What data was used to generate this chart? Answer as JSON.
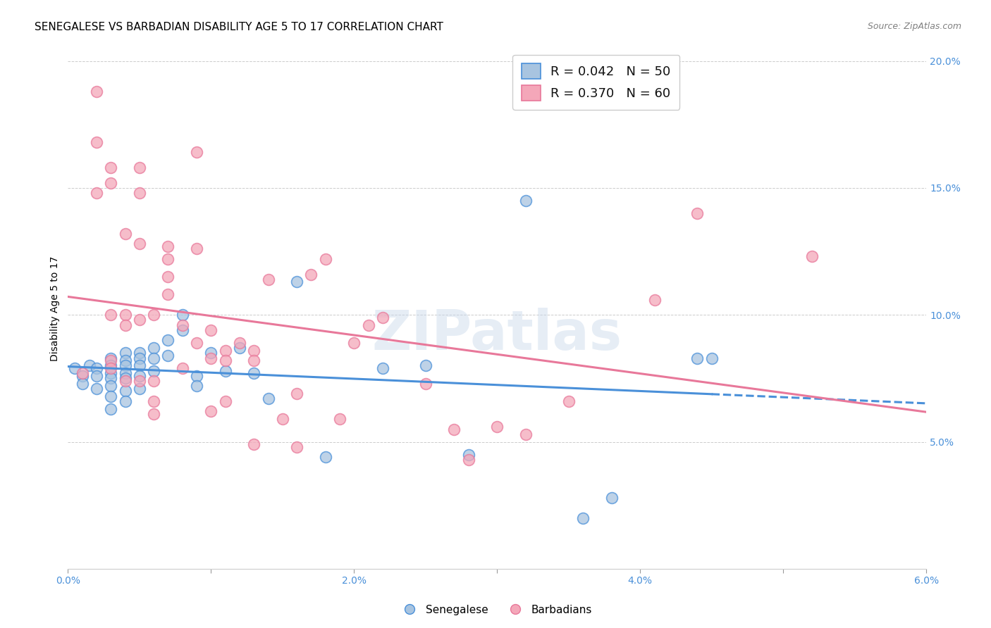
{
  "title": "SENEGALESE VS BARBADIAN DISABILITY AGE 5 TO 17 CORRELATION CHART",
  "source": "Source: ZipAtlas.com",
  "ylabel": "Disability Age 5 to 17",
  "xlim": [
    0.0,
    0.06
  ],
  "ylim": [
    0.0,
    0.205
  ],
  "xticks": [
    0.0,
    0.01,
    0.02,
    0.03,
    0.04,
    0.05,
    0.06
  ],
  "xtick_labels": [
    "0.0%",
    "",
    "2.0%",
    "",
    "4.0%",
    "",
    "6.0%"
  ],
  "yticks": [
    0.0,
    0.05,
    0.1,
    0.15,
    0.2
  ],
  "ytick_labels": [
    "",
    "5.0%",
    "10.0%",
    "15.0%",
    "20.0%"
  ],
  "senegalese_color": "#a8c4e0",
  "barbadian_color": "#f4a7b9",
  "senegalese_line_color": "#4a90d9",
  "barbadian_line_color": "#e8789a",
  "legend_R_senegalese": "0.042",
  "legend_N_senegalese": "50",
  "legend_R_barbadian": "0.370",
  "legend_N_barbadian": "60",
  "watermark": "ZIPatlas",
  "senegalese_x": [
    0.0005,
    0.001,
    0.001,
    0.0015,
    0.002,
    0.002,
    0.002,
    0.003,
    0.003,
    0.003,
    0.003,
    0.003,
    0.003,
    0.003,
    0.004,
    0.004,
    0.004,
    0.004,
    0.004,
    0.004,
    0.004,
    0.005,
    0.005,
    0.005,
    0.005,
    0.005,
    0.006,
    0.006,
    0.006,
    0.007,
    0.007,
    0.008,
    0.008,
    0.009,
    0.009,
    0.01,
    0.011,
    0.012,
    0.013,
    0.014,
    0.016,
    0.018,
    0.022,
    0.025,
    0.028,
    0.032,
    0.036,
    0.038,
    0.044,
    0.045
  ],
  "senegalese_y": [
    0.079,
    0.076,
    0.073,
    0.08,
    0.079,
    0.076,
    0.071,
    0.083,
    0.08,
    0.077,
    0.075,
    0.072,
    0.068,
    0.063,
    0.085,
    0.082,
    0.08,
    0.077,
    0.075,
    0.07,
    0.066,
    0.085,
    0.083,
    0.08,
    0.076,
    0.071,
    0.087,
    0.083,
    0.078,
    0.09,
    0.084,
    0.1,
    0.094,
    0.076,
    0.072,
    0.085,
    0.078,
    0.087,
    0.077,
    0.067,
    0.113,
    0.044,
    0.079,
    0.08,
    0.045,
    0.145,
    0.02,
    0.028,
    0.083,
    0.083
  ],
  "barbadian_x": [
    0.001,
    0.002,
    0.002,
    0.002,
    0.003,
    0.003,
    0.003,
    0.003,
    0.003,
    0.004,
    0.004,
    0.004,
    0.004,
    0.005,
    0.005,
    0.005,
    0.005,
    0.005,
    0.006,
    0.006,
    0.006,
    0.006,
    0.007,
    0.007,
    0.007,
    0.007,
    0.008,
    0.008,
    0.009,
    0.009,
    0.009,
    0.01,
    0.01,
    0.01,
    0.011,
    0.011,
    0.011,
    0.012,
    0.013,
    0.013,
    0.013,
    0.014,
    0.015,
    0.016,
    0.016,
    0.017,
    0.018,
    0.019,
    0.02,
    0.021,
    0.022,
    0.025,
    0.027,
    0.028,
    0.03,
    0.032,
    0.035,
    0.041,
    0.044,
    0.052
  ],
  "barbadian_y": [
    0.077,
    0.188,
    0.168,
    0.148,
    0.158,
    0.152,
    0.1,
    0.082,
    0.079,
    0.132,
    0.1,
    0.096,
    0.074,
    0.158,
    0.148,
    0.128,
    0.098,
    0.074,
    0.1,
    0.074,
    0.066,
    0.061,
    0.127,
    0.122,
    0.115,
    0.108,
    0.096,
    0.079,
    0.164,
    0.126,
    0.089,
    0.094,
    0.083,
    0.062,
    0.086,
    0.082,
    0.066,
    0.089,
    0.086,
    0.082,
    0.049,
    0.114,
    0.059,
    0.048,
    0.069,
    0.116,
    0.122,
    0.059,
    0.089,
    0.096,
    0.099,
    0.073,
    0.055,
    0.043,
    0.056,
    0.053,
    0.066,
    0.106,
    0.14,
    0.123
  ],
  "title_fontsize": 11,
  "axis_label_fontsize": 10,
  "tick_fontsize": 10,
  "legend_fontsize": 13
}
